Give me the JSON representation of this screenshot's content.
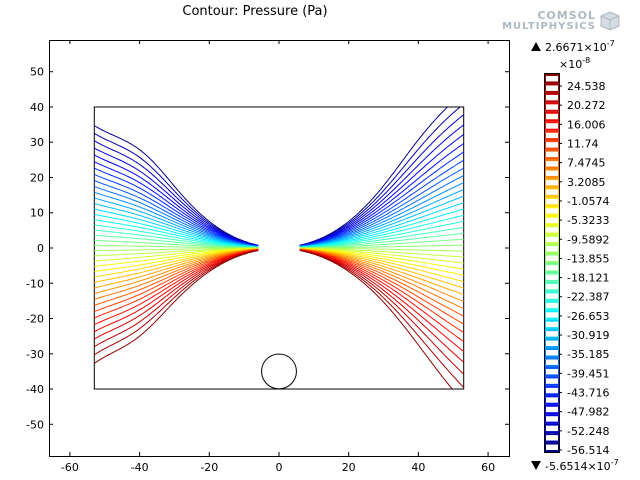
{
  "chart_data": {
    "type": "contour",
    "title": "Contour: Pressure (Pa)",
    "xlabel": "",
    "ylabel": "",
    "xlim": [
      -66,
      66
    ],
    "ylim": [
      -59,
      59
    ],
    "xticks": [
      -60,
      -40,
      -20,
      0,
      20,
      40,
      60
    ],
    "yticks": [
      50,
      40,
      30,
      20,
      10,
      0,
      -10,
      -20,
      -30,
      -40,
      -50
    ],
    "domain": {
      "x": [
        -53,
        53
      ],
      "y": [
        -40,
        40
      ]
    },
    "obstacle": {
      "x": 0,
      "y": 0,
      "r": 5.5
    },
    "ghost_circle": {
      "x": 0,
      "y": -35,
      "r": 5
    },
    "colorbar": {
      "max_label": "2.6671×10",
      "max_exp": "-7",
      "multiplier": "×10",
      "multiplier_exp": "-8",
      "min_label": "-5.6514×10",
      "min_exp": "-7",
      "ticks": [
        "24.538",
        "20.272",
        "16.006",
        "11.74",
        "7.4745",
        "3.2085",
        "-1.0574",
        "-5.3233",
        "-9.5892",
        "-13.855",
        "-18.121",
        "-22.387",
        "-26.653",
        "-30.919",
        "-35.185",
        "-39.451",
        "-43.716",
        "-47.982",
        "-52.248",
        "-56.514"
      ]
    },
    "grid": false,
    "legend": "colorbar-right"
  },
  "logo": {
    "line1": "COMSOL",
    "line2": "MULTIPHYSICS"
  }
}
